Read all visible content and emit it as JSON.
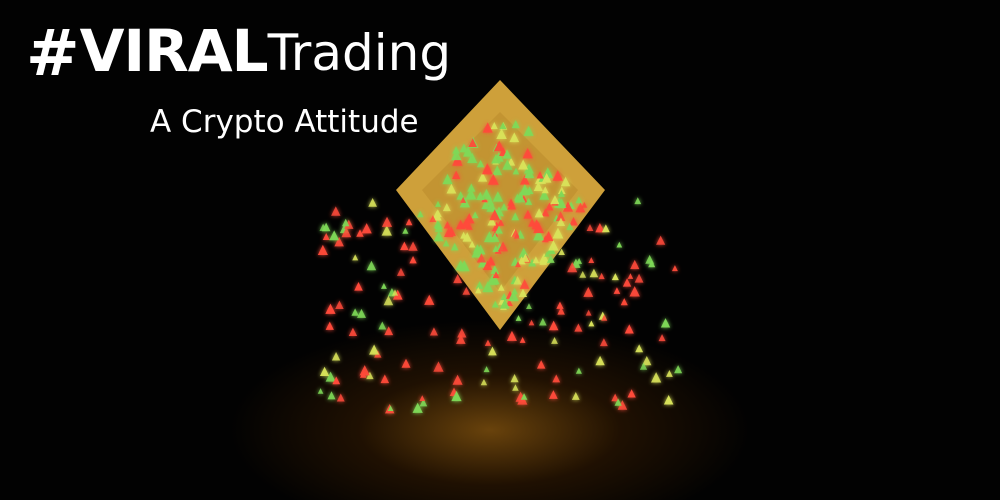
{
  "brand": {
    "hash": "#",
    "bold_word": "VIRAL",
    "light_word": "Trading",
    "tagline": "A Crypto Attitude"
  },
  "colors": {
    "logo_gold": "#e0b346",
    "particle_green": "#7ed957",
    "particle_yellow": "#d9e35a",
    "particle_red": "#ff4a3a",
    "text": "#ffffff"
  },
  "scene": {
    "subject": "diamond-shaped crypto coin logo dissolving into glowing green, yellow and red triangle particles over a dark reflective floor"
  }
}
